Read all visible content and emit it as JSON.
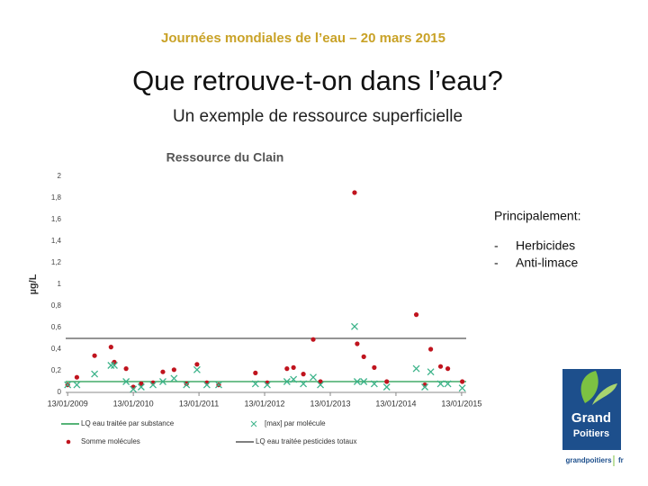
{
  "header": {
    "event": "Journées mondiales de l’eau – 20 mars 2015",
    "title": "Que retrouve-t-on dans l’eau?",
    "subtitle": "Un exemple de ressource superficielle"
  },
  "chart_data": {
    "type": "scatter",
    "title": "Ressource du Clain",
    "y_label": "µg/L",
    "x": [
      2009.03,
      2009.17,
      2009.44,
      2009.69,
      2009.74,
      2009.92,
      2010.03,
      2010.15,
      2010.33,
      2010.48,
      2010.65,
      2010.84,
      2011.0,
      2011.15,
      2011.33,
      2011.89,
      2012.07,
      2012.37,
      2012.47,
      2012.62,
      2012.77,
      2012.88,
      2013.4,
      2013.44,
      2013.54,
      2013.7,
      2013.89,
      2014.34,
      2014.47,
      2014.56,
      2014.71,
      2014.82,
      2015.04
    ],
    "series": [
      {
        "name": "Somme molécules",
        "color": "#c0141e",
        "marker": "dot",
        "values": [
          0.07,
          0.14,
          0.34,
          0.42,
          0.28,
          0.22,
          0.05,
          0.08,
          0.09,
          0.19,
          0.21,
          0.08,
          0.26,
          0.09,
          0.07,
          0.18,
          0.09,
          0.22,
          0.23,
          0.17,
          0.49,
          0.1,
          1.85,
          0.45,
          0.33,
          0.23,
          0.1,
          0.72,
          0.07,
          0.4,
          0.24,
          0.22,
          0.1
        ]
      },
      {
        "name": "[max] par molécule",
        "color": "#3cb38a",
        "marker": "cross",
        "values": [
          0.07,
          0.07,
          0.17,
          0.25,
          0.25,
          0.1,
          0.03,
          0.05,
          0.07,
          0.1,
          0.13,
          0.07,
          0.21,
          0.07,
          0.07,
          0.08,
          0.07,
          0.1,
          0.12,
          0.08,
          0.14,
          0.07,
          0.61,
          0.1,
          0.1,
          0.08,
          0.05,
          0.22,
          0.05,
          0.19,
          0.08,
          0.08,
          0.04
        ]
      }
    ],
    "hlines": [
      {
        "name": "LQ eau traitée par substance",
        "color": "#1f9a4a",
        "value": 0.1
      },
      {
        "name": "LQ eau traitée pesticides totaux",
        "color": "#555555",
        "value": 0.5
      }
    ],
    "xlim": [
      2009.0,
      2015.1
    ],
    "xticks": [
      {
        "value": 2009.03,
        "label": "13/01/2009"
      },
      {
        "value": 2010.03,
        "label": "13/01/2010"
      },
      {
        "value": 2011.03,
        "label": "13/01/2011"
      },
      {
        "value": 2012.03,
        "label": "13/01/2012"
      },
      {
        "value": 2013.03,
        "label": "13/01/2013"
      },
      {
        "value": 2014.03,
        "label": "13/01/2014"
      },
      {
        "value": 2015.03,
        "label": "13/01/2015"
      }
    ],
    "ylim": [
      0,
      2
    ],
    "yticks": [
      0,
      {
        "value": 0.2,
        "label": "0,2"
      },
      {
        "value": 0.4,
        "label": "0,4"
      },
      {
        "value": 0.6,
        "label": "0,6"
      },
      {
        "value": 0.8,
        "label": "0,8"
      },
      1,
      {
        "value": 1.2,
        "label": "1,2"
      },
      {
        "value": 1.4,
        "label": "1,4"
      },
      {
        "value": 1.6,
        "label": "1,6"
      },
      {
        "value": 1.8,
        "label": "1,8"
      },
      2
    ],
    "grid": false
  },
  "notes": {
    "heading": "Principalement:",
    "bullet": "-",
    "items": [
      "Herbicides",
      "Anti-limace"
    ]
  },
  "logo": {
    "line1": "Grand",
    "line2": "Poitiers",
    "site": "grandpoitiers",
    "tld": "fr"
  }
}
